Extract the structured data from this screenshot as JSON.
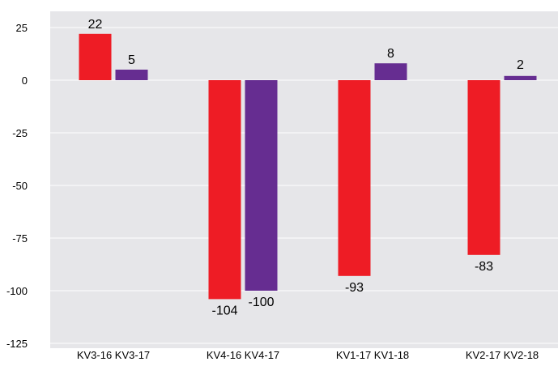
{
  "chart_data": {
    "type": "bar",
    "title": "",
    "xlabel": "",
    "ylabel": "",
    "ylim": [
      -125,
      30
    ],
    "yticks": [
      25,
      0,
      -25,
      -50,
      -75,
      -100,
      -125
    ],
    "ytick_labels": [
      "25",
      "0",
      "-25",
      "-50",
      "-75",
      "-100",
      "-125"
    ],
    "grid": true,
    "legend": "none",
    "plot_background": "#e6e6e9",
    "categories": [
      "KV3-16 KV3-17",
      "KV4-16 KV4-17",
      "KV1-17 KV1-18",
      "KV2-17 KV2-18"
    ],
    "series": [
      {
        "color": "#ee1c25",
        "values": [
          22,
          -104,
          -93,
          -83
        ],
        "labels": [
          "22",
          "-104",
          "-93",
          "-83"
        ]
      },
      {
        "color": "#662d91",
        "values": [
          5,
          -100,
          8,
          2
        ],
        "labels": [
          "5",
          "-100",
          "8",
          ""
        ]
      }
    ],
    "annotations": [
      "2"
    ]
  }
}
